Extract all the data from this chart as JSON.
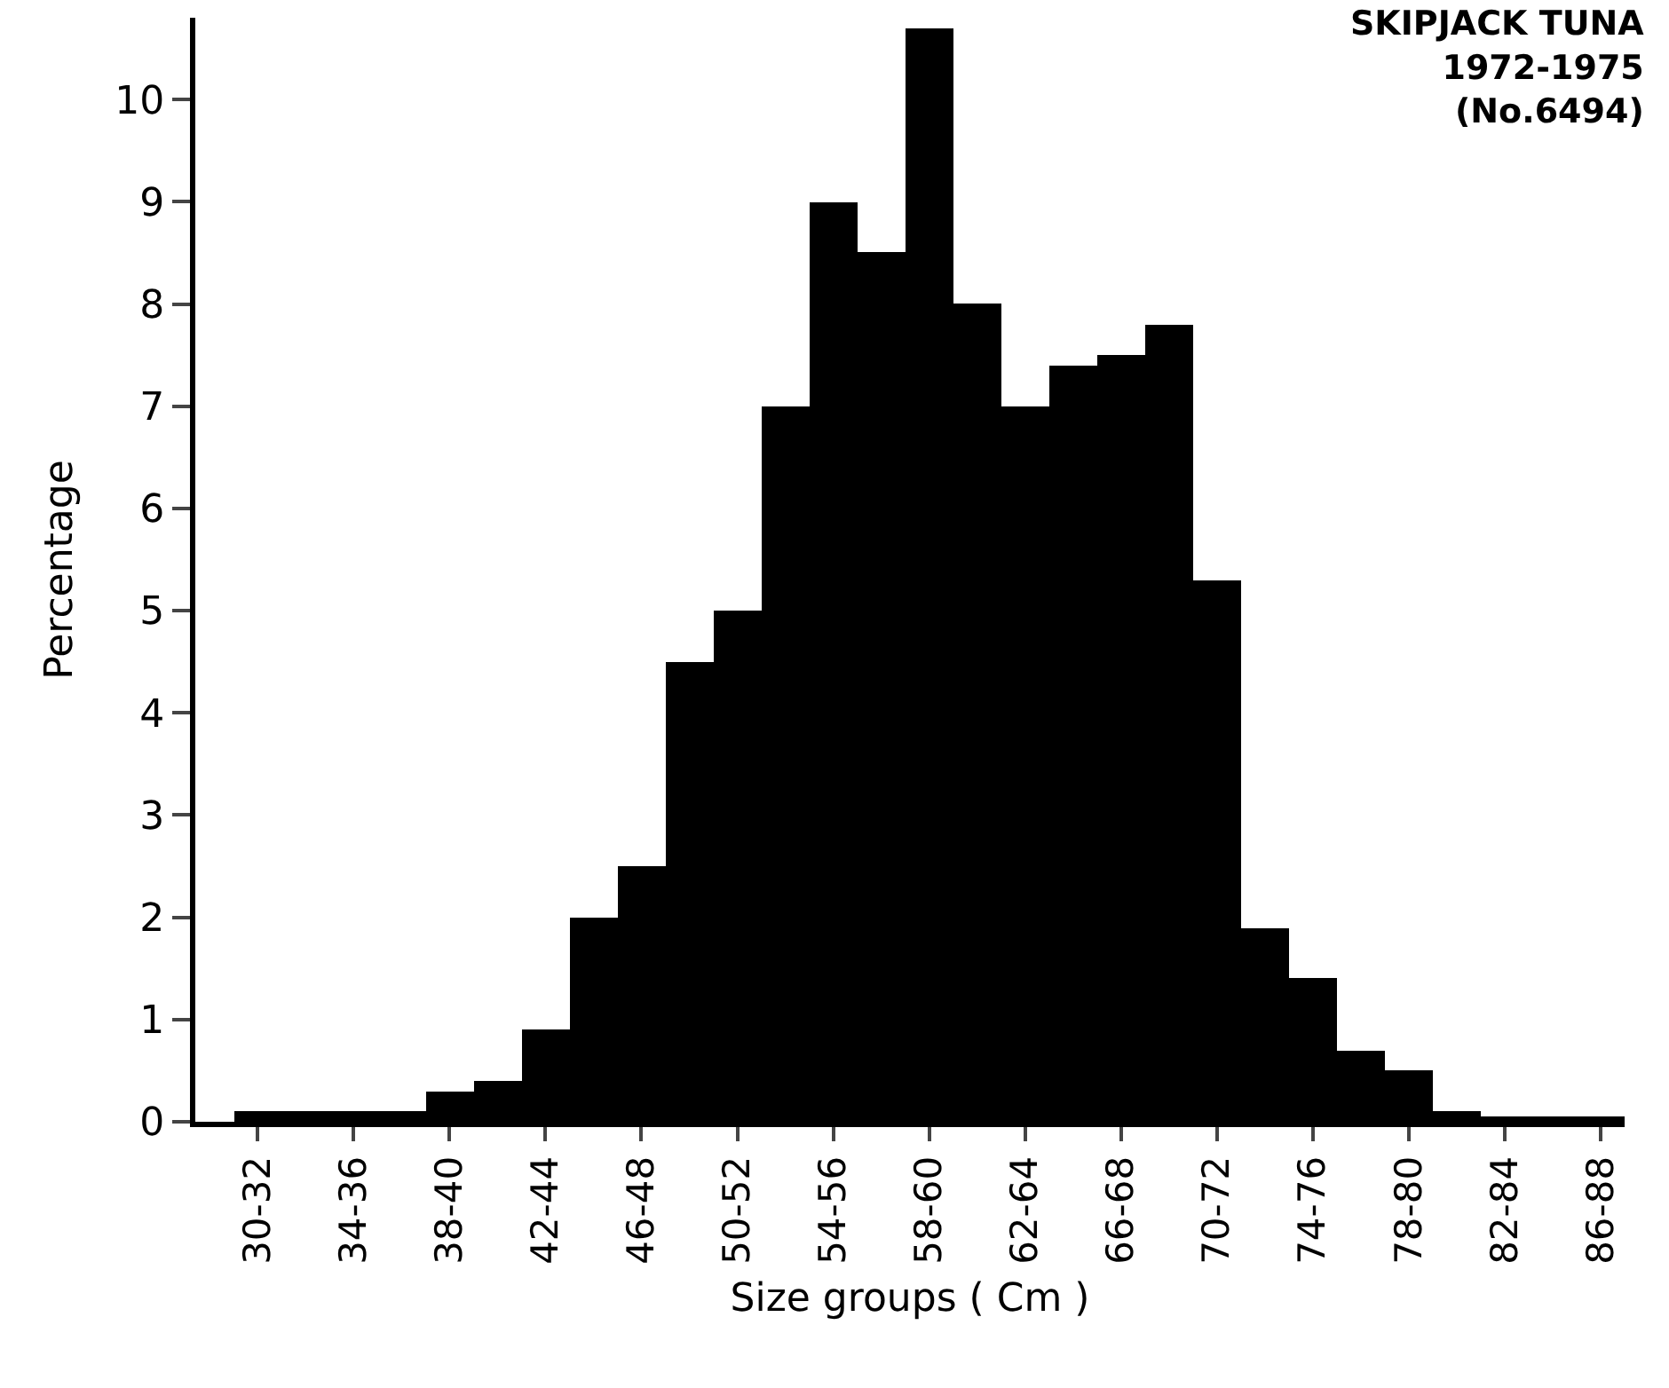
{
  "chart_data": {
    "type": "bar",
    "title": "SKIPJACK TUNA\n1972-1975\n(No.6494)",
    "xlabel": "Size groups ( Cm )",
    "ylabel": "Percentage",
    "color": "#000000",
    "categories": [
      "30-32",
      null,
      "34-36",
      null,
      "38-40",
      null,
      "42-44",
      null,
      "46-48",
      null,
      "50-52",
      null,
      "54-56",
      null,
      "58-60",
      null,
      "62-64",
      null,
      "66-68",
      null,
      "70-72",
      null,
      "74-76",
      null,
      "78-80",
      null,
      "82-84",
      null,
      "86-88"
    ],
    "values": [
      0.1,
      0.1,
      0.1,
      0.1,
      0.3,
      0.4,
      0.9,
      2.0,
      2.5,
      4.5,
      5.0,
      7.0,
      9.0,
      8.5,
      10.7,
      8.0,
      7.0,
      7.4,
      7.5,
      7.8,
      5.3,
      1.9,
      1.4,
      0.7,
      0.5,
      0.1,
      0.05,
      0.05,
      0.05
    ],
    "ylim": [
      0,
      10.8
    ],
    "yticks": [
      0,
      1,
      2,
      3,
      4,
      5,
      6,
      7,
      8,
      9,
      10
    ]
  }
}
